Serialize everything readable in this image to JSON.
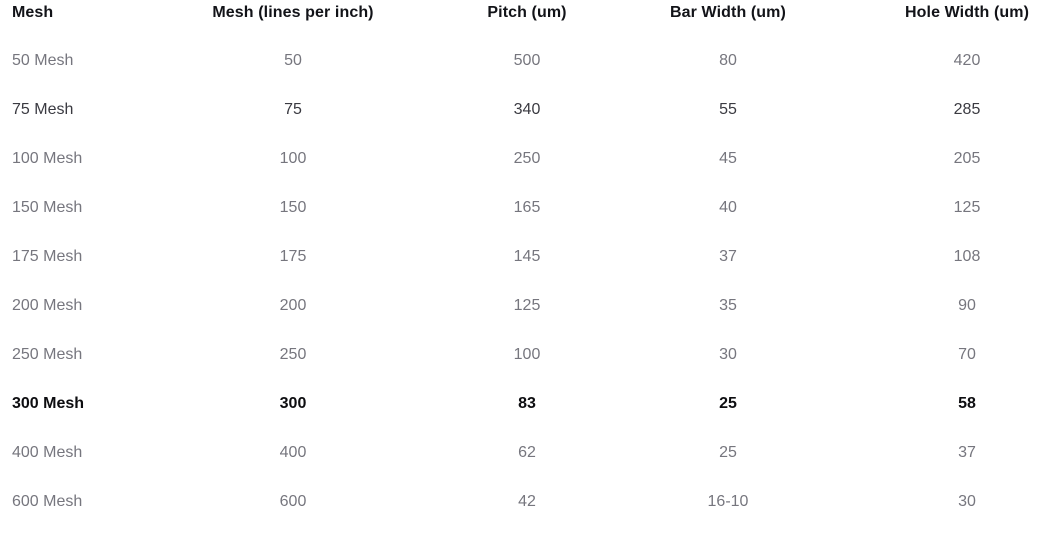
{
  "table": {
    "columns": [
      {
        "label": "Mesh"
      },
      {
        "label": "Mesh (lines per inch)"
      },
      {
        "label": "Pitch (um)"
      },
      {
        "label": "Bar Width (um)"
      },
      {
        "label": "Hole Width (um)"
      }
    ],
    "rows": [
      {
        "cells": [
          "50 Mesh",
          "50",
          "500",
          "80",
          "420"
        ],
        "style": "muted"
      },
      {
        "cells": [
          "75 Mesh",
          "75",
          "340",
          "55",
          "285"
        ],
        "style": "dark"
      },
      {
        "cells": [
          "100 Mesh",
          "100",
          "250",
          "45",
          "205"
        ],
        "style": "muted"
      },
      {
        "cells": [
          "150 Mesh",
          "150",
          "165",
          "40",
          "125"
        ],
        "style": "muted"
      },
      {
        "cells": [
          "175 Mesh",
          "175",
          "145",
          "37",
          "108"
        ],
        "style": "muted"
      },
      {
        "cells": [
          "200 Mesh",
          "200",
          "125",
          "35",
          "90"
        ],
        "style": "muted"
      },
      {
        "cells": [
          "250 Mesh",
          "250",
          "100",
          "30",
          "70"
        ],
        "style": "muted"
      },
      {
        "cells": [
          "300 Mesh",
          "300",
          "83",
          "25",
          "58"
        ],
        "style": "bold"
      },
      {
        "cells": [
          "400 Mesh",
          "400",
          "62",
          "25",
          "37"
        ],
        "style": "muted"
      },
      {
        "cells": [
          "600 Mesh",
          "600",
          "42",
          "16-10",
          "30"
        ],
        "style": "muted"
      }
    ],
    "colors": {
      "header": "#121318",
      "muted": "#76767e",
      "dark": "#3a3a41",
      "bold": "#0d0d10"
    }
  }
}
